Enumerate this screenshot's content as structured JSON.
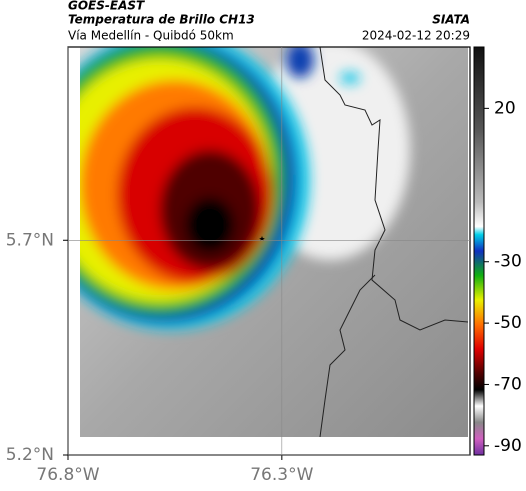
{
  "header": {
    "source": "GOES-EAST",
    "title": "Temperatura de Brillo CH13",
    "subtitle": "Vía Medellín - Quibdó 50km",
    "agency": "SIATA",
    "timestamp": "2024-02-12 20:29"
  },
  "map": {
    "xlim": [
      -76.8,
      -75.86
    ],
    "ylim": [
      5.2,
      6.15
    ],
    "xticks": [
      {
        "value": -76.8,
        "label": "76.8°W"
      },
      {
        "value": -76.3,
        "label": "76.3°W"
      }
    ],
    "yticks": [
      {
        "value": 5.7,
        "label": "5.7°N"
      },
      {
        "value": 5.2,
        "label": "5.2°N"
      }
    ]
  },
  "colorbar": {
    "lim": [
      -93,
      40
    ],
    "ticks": [
      20,
      -30,
      -50,
      -70,
      -90
    ]
  }
}
